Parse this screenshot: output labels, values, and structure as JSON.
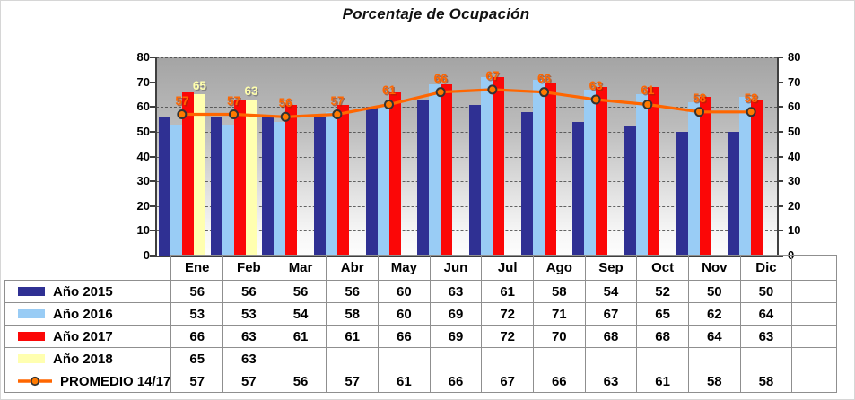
{
  "title": "Porcentaje de Ocupación",
  "chart_data": {
    "type": "bar",
    "title": "Porcentaje de Ocupación",
    "categories": [
      "Ene",
      "Feb",
      "Mar",
      "Abr",
      "May",
      "Jun",
      "Jul",
      "Ago",
      "Sep",
      "Oct",
      "Nov",
      "Dic"
    ],
    "series": [
      {
        "name": "Año 2015",
        "kind": "bar",
        "color": "#2F3093",
        "values": [
          56,
          56,
          56,
          56,
          60,
          63,
          61,
          58,
          54,
          52,
          50,
          50
        ]
      },
      {
        "name": "Año 2016",
        "kind": "bar",
        "color": "#99CCF5",
        "values": [
          53,
          53,
          54,
          58,
          60,
          69,
          72,
          71,
          67,
          65,
          62,
          64
        ]
      },
      {
        "name": "Año 2017",
        "kind": "bar",
        "color": "#FB0707",
        "values": [
          66,
          63,
          61,
          61,
          66,
          69,
          72,
          70,
          68,
          68,
          64,
          63
        ]
      },
      {
        "name": "Año 2018",
        "kind": "bar",
        "color": "#FFFFB0",
        "values": [
          65,
          63,
          null,
          null,
          null,
          null,
          null,
          null,
          null,
          null,
          null,
          null
        ],
        "show_labels": true
      },
      {
        "name": "PROMEDIO 14/17",
        "kind": "line",
        "color": "#FF6600",
        "marker": "circle",
        "marker_fill": "#FF7A00",
        "marker_stroke": "#333333",
        "values": [
          57,
          57,
          56,
          57,
          61,
          66,
          67,
          66,
          63,
          61,
          58,
          58
        ],
        "show_labels": true
      }
    ],
    "ylim": [
      0,
      80
    ],
    "ytick_step": 10,
    "y_axis_sides": [
      "left",
      "right"
    ],
    "gridlines": "horizontal-dashed",
    "plot_background": "gray-gradient-top-dark",
    "legend_position": "table-left-column"
  }
}
